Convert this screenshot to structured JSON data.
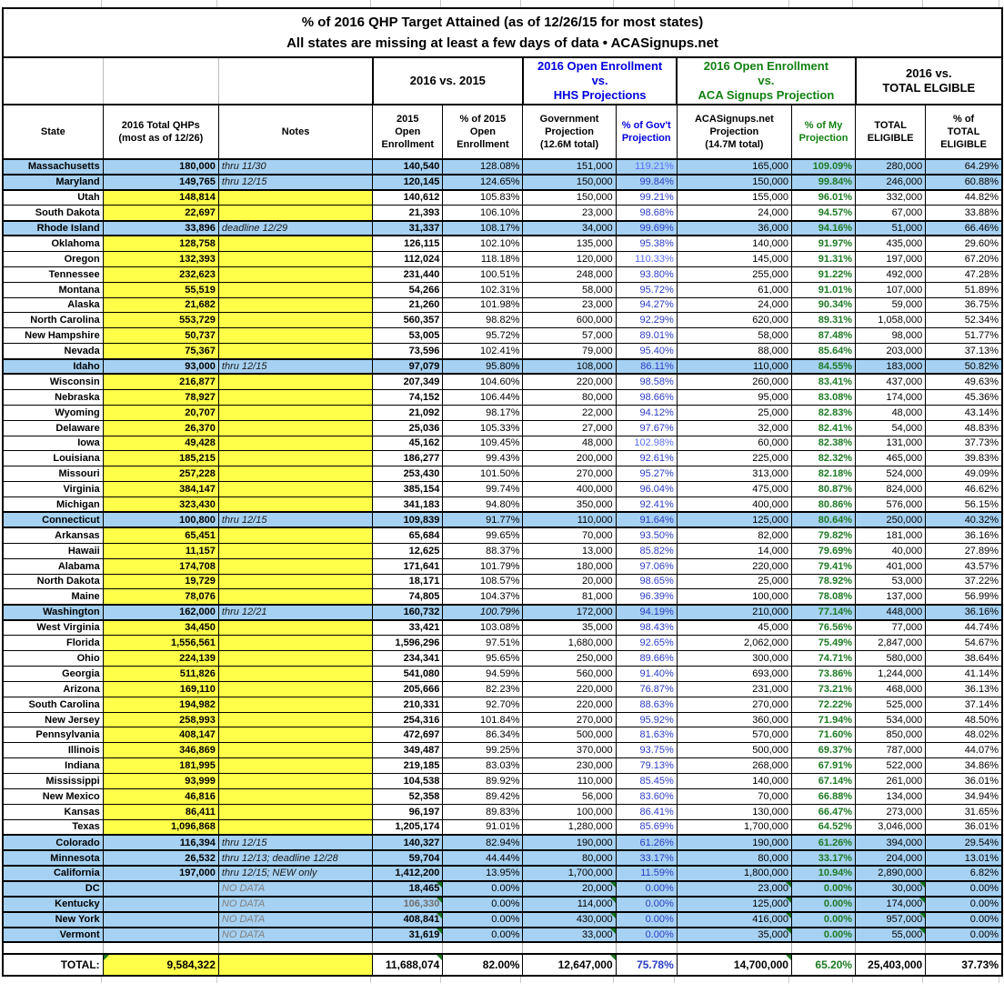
{
  "chart_data": {
    "type": "table",
    "title": "% of 2016 QHP Target Attained (as of 12/26/15 for most states)",
    "subtitle": "All states are missing at least a few days of data • ACASignups.net",
    "group_headers": [
      {
        "label": "2016 vs. 2015",
        "color": "black"
      },
      {
        "label": "2016 Open Enrollment\nvs.\nHHS Projections",
        "color": "blue"
      },
      {
        "label": "2016 Open Enrollment\nvs.\nACA Signups Projection",
        "color": "green"
      },
      {
        "label": "2016 vs.\nTOTAL ELGIBLE",
        "color": "black"
      }
    ],
    "columns": [
      "State",
      "2016 Total QHPs\n(most as of 12/26)",
      "Notes",
      "2015\nOpen\nEnrollment",
      "% of 2015\nOpen\nEnrollment",
      "Government\nProjection\n(12.6M total)",
      "% of Gov't\nProjection",
      "ACASignups.net\nProjection\n(14.7M total)",
      "% of My\nProjection",
      "TOTAL\nELIGIBLE",
      "% of\nTOTAL\nELIGIBLE"
    ],
    "row_flags_legend": {
      "H": "highlighted-blue-row",
      "N": "no-data-gray-note",
      "G": "gray-number",
      "I": "italic-pct",
      "T": "green-corner-markers"
    },
    "rows": [
      [
        "Massachusetts",
        "180,000",
        "thru 11/30",
        "140,540",
        "128.08%",
        "151,000",
        "119.21%",
        "165,000",
        "109.09%",
        "280,000",
        "64.29%",
        "H"
      ],
      [
        "Maryland",
        "149,765",
        "thru 12/15",
        "120,145",
        "124.65%",
        "150,000",
        "99.84%",
        "150,000",
        "99.84%",
        "246,000",
        "60.88%",
        "H"
      ],
      [
        "Utah",
        "148,814",
        "",
        "140,612",
        "105.83%",
        "150,000",
        "99.21%",
        "155,000",
        "96.01%",
        "332,000",
        "44.82%",
        ""
      ],
      [
        "South Dakota",
        "22,697",
        "",
        "21,393",
        "106.10%",
        "23,000",
        "98.68%",
        "24,000",
        "94.57%",
        "67,000",
        "33.88%",
        ""
      ],
      [
        "Rhode Island",
        "33,896",
        "deadline 12/29",
        "31,337",
        "108.17%",
        "34,000",
        "99.69%",
        "36,000",
        "94.16%",
        "51,000",
        "66.46%",
        "H"
      ],
      [
        "Oklahoma",
        "128,758",
        "",
        "126,115",
        "102.10%",
        "135,000",
        "95.38%",
        "140,000",
        "91.97%",
        "435,000",
        "29.60%",
        ""
      ],
      [
        "Oregon",
        "132,393",
        "",
        "112,024",
        "118.18%",
        "120,000",
        "110.33%",
        "145,000",
        "91.31%",
        "197,000",
        "67.20%",
        ""
      ],
      [
        "Tennessee",
        "232,623",
        "",
        "231,440",
        "100.51%",
        "248,000",
        "93.80%",
        "255,000",
        "91.22%",
        "492,000",
        "47.28%",
        ""
      ],
      [
        "Montana",
        "55,519",
        "",
        "54,266",
        "102.31%",
        "58,000",
        "95.72%",
        "61,000",
        "91.01%",
        "107,000",
        "51.89%",
        ""
      ],
      [
        "Alaska",
        "21,682",
        "",
        "21,260",
        "101.98%",
        "23,000",
        "94.27%",
        "24,000",
        "90.34%",
        "59,000",
        "36.75%",
        ""
      ],
      [
        "North Carolina",
        "553,729",
        "",
        "560,357",
        "98.82%",
        "600,000",
        "92.29%",
        "620,000",
        "89.31%",
        "1,058,000",
        "52.34%",
        ""
      ],
      [
        "New Hampshire",
        "50,737",
        "",
        "53,005",
        "95.72%",
        "57,000",
        "89.01%",
        "58,000",
        "87.48%",
        "98,000",
        "51.77%",
        ""
      ],
      [
        "Nevada",
        "75,367",
        "",
        "73,596",
        "102.41%",
        "79,000",
        "95.40%",
        "88,000",
        "85.64%",
        "203,000",
        "37.13%",
        ""
      ],
      [
        "Idaho",
        "93,000",
        "thru 12/15",
        "97,079",
        "95.80%",
        "108,000",
        "86.11%",
        "110,000",
        "84.55%",
        "183,000",
        "50.82%",
        "H"
      ],
      [
        "Wisconsin",
        "216,877",
        "",
        "207,349",
        "104.60%",
        "220,000",
        "98.58%",
        "260,000",
        "83.41%",
        "437,000",
        "49.63%",
        ""
      ],
      [
        "Nebraska",
        "78,927",
        "",
        "74,152",
        "106.44%",
        "80,000",
        "98.66%",
        "95,000",
        "83.08%",
        "174,000",
        "45.36%",
        ""
      ],
      [
        "Wyoming",
        "20,707",
        "",
        "21,092",
        "98.17%",
        "22,000",
        "94.12%",
        "25,000",
        "82.83%",
        "48,000",
        "43.14%",
        ""
      ],
      [
        "Delaware",
        "26,370",
        "",
        "25,036",
        "105.33%",
        "27,000",
        "97.67%",
        "32,000",
        "82.41%",
        "54,000",
        "48.83%",
        ""
      ],
      [
        "Iowa",
        "49,428",
        "",
        "45,162",
        "109.45%",
        "48,000",
        "102.98%",
        "60,000",
        "82.38%",
        "131,000",
        "37.73%",
        ""
      ],
      [
        "Louisiana",
        "185,215",
        "",
        "186,277",
        "99.43%",
        "200,000",
        "92.61%",
        "225,000",
        "82.32%",
        "465,000",
        "39.83%",
        ""
      ],
      [
        "Missouri",
        "257,228",
        "",
        "253,430",
        "101.50%",
        "270,000",
        "95.27%",
        "313,000",
        "82.18%",
        "524,000",
        "49.09%",
        ""
      ],
      [
        "Virginia",
        "384,147",
        "",
        "385,154",
        "99.74%",
        "400,000",
        "96.04%",
        "475,000",
        "80.87%",
        "824,000",
        "46.62%",
        ""
      ],
      [
        "Michigan",
        "323,430",
        "",
        "341,183",
        "94.80%",
        "350,000",
        "92.41%",
        "400,000",
        "80.86%",
        "576,000",
        "56.15%",
        ""
      ],
      [
        "Connecticut",
        "100,800",
        "thru 12/15",
        "109,839",
        "91.77%",
        "110,000",
        "91.64%",
        "125,000",
        "80.64%",
        "250,000",
        "40.32%",
        "H"
      ],
      [
        "Arkansas",
        "65,451",
        "",
        "65,684",
        "99.65%",
        "70,000",
        "93.50%",
        "82,000",
        "79.82%",
        "181,000",
        "36.16%",
        ""
      ],
      [
        "Hawaii",
        "11,157",
        "",
        "12,625",
        "88.37%",
        "13,000",
        "85.82%",
        "14,000",
        "79.69%",
        "40,000",
        "27.89%",
        ""
      ],
      [
        "Alabama",
        "174,708",
        "",
        "171,641",
        "101.79%",
        "180,000",
        "97.06%",
        "220,000",
        "79.41%",
        "401,000",
        "43.57%",
        ""
      ],
      [
        "North Dakota",
        "19,729",
        "",
        "18,171",
        "108.57%",
        "20,000",
        "98.65%",
        "25,000",
        "78.92%",
        "53,000",
        "37.22%",
        ""
      ],
      [
        "Maine",
        "78,076",
        "",
        "74,805",
        "104.37%",
        "81,000",
        "96.39%",
        "100,000",
        "78.08%",
        "137,000",
        "56.99%",
        ""
      ],
      [
        "Washington",
        "162,000",
        "thru 12/21",
        "160,732",
        "100.79%",
        "172,000",
        "94.19%",
        "210,000",
        "77.14%",
        "448,000",
        "36.16%",
        "HI"
      ],
      [
        "West Virginia",
        "34,450",
        "",
        "33,421",
        "103.08%",
        "35,000",
        "98.43%",
        "45,000",
        "76.56%",
        "77,000",
        "44.74%",
        ""
      ],
      [
        "Florida",
        "1,556,561",
        "",
        "1,596,296",
        "97.51%",
        "1,680,000",
        "92.65%",
        "2,062,000",
        "75.49%",
        "2,847,000",
        "54.67%",
        ""
      ],
      [
        "Ohio",
        "224,139",
        "",
        "234,341",
        "95.65%",
        "250,000",
        "89.66%",
        "300,000",
        "74.71%",
        "580,000",
        "38.64%",
        ""
      ],
      [
        "Georgia",
        "511,826",
        "",
        "541,080",
        "94.59%",
        "560,000",
        "91.40%",
        "693,000",
        "73.86%",
        "1,244,000",
        "41.14%",
        ""
      ],
      [
        "Arizona",
        "169,110",
        "",
        "205,666",
        "82.23%",
        "220,000",
        "76.87%",
        "231,000",
        "73.21%",
        "468,000",
        "36.13%",
        ""
      ],
      [
        "South Carolina",
        "194,982",
        "",
        "210,331",
        "92.70%",
        "220,000",
        "88.63%",
        "270,000",
        "72.22%",
        "525,000",
        "37.14%",
        ""
      ],
      [
        "New Jersey",
        "258,993",
        "",
        "254,316",
        "101.84%",
        "270,000",
        "95.92%",
        "360,000",
        "71.94%",
        "534,000",
        "48.50%",
        ""
      ],
      [
        "Pennsylvania",
        "408,147",
        "",
        "472,697",
        "86.34%",
        "500,000",
        "81.63%",
        "570,000",
        "71.60%",
        "850,000",
        "48.02%",
        ""
      ],
      [
        "Illinois",
        "346,869",
        "",
        "349,487",
        "99.25%",
        "370,000",
        "93.75%",
        "500,000",
        "69.37%",
        "787,000",
        "44.07%",
        ""
      ],
      [
        "Indiana",
        "181,995",
        "",
        "219,185",
        "83.03%",
        "230,000",
        "79.13%",
        "268,000",
        "67.91%",
        "522,000",
        "34.86%",
        ""
      ],
      [
        "Mississippi",
        "93,999",
        "",
        "104,538",
        "89.92%",
        "110,000",
        "85.45%",
        "140,000",
        "67.14%",
        "261,000",
        "36.01%",
        ""
      ],
      [
        "New Mexico",
        "46,816",
        "",
        "52,358",
        "89.42%",
        "56,000",
        "83.60%",
        "70,000",
        "66.88%",
        "134,000",
        "34.94%",
        ""
      ],
      [
        "Kansas",
        "86,411",
        "",
        "96,197",
        "89.83%",
        "100,000",
        "86.41%",
        "130,000",
        "66.47%",
        "273,000",
        "31.65%",
        ""
      ],
      [
        "Texas",
        "1,096,868",
        "",
        "1,205,174",
        "91.01%",
        "1,280,000",
        "85.69%",
        "1,700,000",
        "64.52%",
        "3,046,000",
        "36.01%",
        ""
      ],
      [
        "Colorado",
        "116,394",
        "thru 12/15",
        "140,327",
        "82.94%",
        "190,000",
        "61.26%",
        "190,000",
        "61.26%",
        "394,000",
        "29.54%",
        "H"
      ],
      [
        "Minnesota",
        "26,532",
        "thru 12/13; deadline 12/28",
        "59,704",
        "44.44%",
        "80,000",
        "33.17%",
        "80,000",
        "33.17%",
        "204,000",
        "13.01%",
        "H"
      ],
      [
        "California",
        "197,000",
        "thru 12/15; NEW only",
        "1,412,200",
        "13.95%",
        "1,700,000",
        "11.59%",
        "1,800,000",
        "10.94%",
        "2,890,000",
        "6.82%",
        "H"
      ],
      [
        "DC",
        "",
        "NO DATA",
        "18,465",
        "0.00%",
        "20,000",
        "0.00%",
        "23,000",
        "0.00%",
        "30,000",
        "0.00%",
        "HNT"
      ],
      [
        "Kentucky",
        "",
        "NO DATA",
        "106,330",
        "0.00%",
        "114,000",
        "0.00%",
        "125,000",
        "0.00%",
        "174,000",
        "0.00%",
        "HNGT"
      ],
      [
        "New York",
        "",
        "NO DATA",
        "408,841",
        "0.00%",
        "430,000",
        "0.00%",
        "416,000",
        "0.00%",
        "957,000",
        "0.00%",
        "HNT"
      ],
      [
        "Vermont",
        "",
        "NO DATA",
        "31,619",
        "0.00%",
        "33,000",
        "0.00%",
        "35,000",
        "0.00%",
        "55,000",
        "0.00%",
        "HNT"
      ]
    ],
    "total_row": [
      "TOTAL:",
      "9,584,322",
      "",
      "11,688,074",
      "82.00%",
      "12,647,000",
      "75.78%",
      "14,700,000",
      "65.20%",
      "25,403,000",
      "37.73%"
    ]
  },
  "colors": {
    "row_highlight_blue": "#a6d1f2",
    "cell_yellow": "#ffff4a",
    "hhs_header_blue": "#0000dd",
    "aca_header_green": "#128012",
    "pct_gov_blue": "#2b3cc4",
    "pct_gov_blue_bright": "#5a6ef5",
    "pct_my_green": "#1d7a24",
    "comment_marker_green": "#17761a",
    "no_data_gray": "#7f7f7f"
  }
}
